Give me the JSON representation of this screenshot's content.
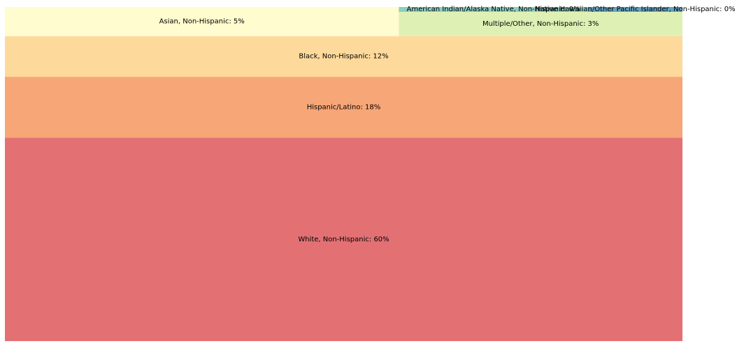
{
  "chart_data": {
    "type": "treemap",
    "title": "",
    "items": [
      {
        "label": "White, Non-Hispanic: 60%",
        "category": "White, Non-Hispanic",
        "value": 60,
        "color": "#e37174"
      },
      {
        "label": "Hispanic/Latino: 18%",
        "category": "Hispanic/Latino",
        "value": 18,
        "color": "#f7a677"
      },
      {
        "label": "Black, Non-Hispanic: 12%",
        "category": "Black, Non-Hispanic",
        "value": 12,
        "color": "#fdda9b"
      },
      {
        "label": "Asian, Non-Hispanic: 5%",
        "category": "Asian, Non-Hispanic",
        "value": 5,
        "color": "#fffccf"
      },
      {
        "label": "Multiple/Other, Non-Hispanic: 3%",
        "category": "Multiple/Other, Non-Hispanic",
        "value": 3,
        "color": "#dff0b5"
      },
      {
        "label": "American Indian/Alaska Native, Non-Hispanic: 0%",
        "category": "American Indian/Alaska Native, Non-Hispanic",
        "value": 0.4,
        "color": "#8ccfbd"
      },
      {
        "label": "Native Hawaiian/Other Pacific Islander, Non-Hispanic: 0%",
        "category": "Native Hawaiian/Other Pacific Islander, Non-Hispanic",
        "value": 0.2,
        "color": "#61a4c4"
      }
    ]
  }
}
